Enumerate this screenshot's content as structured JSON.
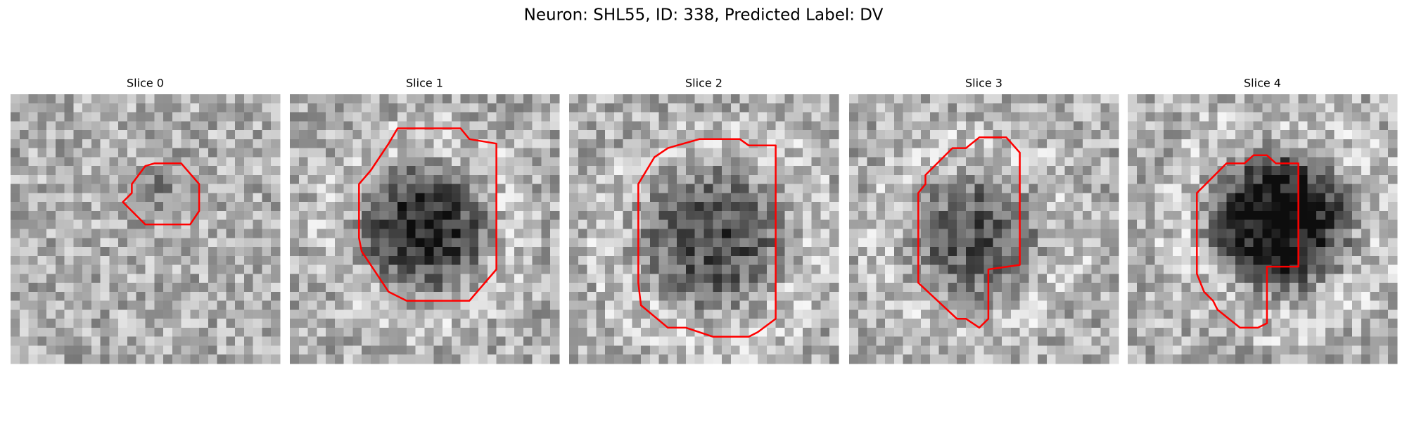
{
  "title": "Neuron: SHL55, ID: 338, Predicted Label: DV",
  "panels": [
    {
      "title": "Slice 0"
    },
    {
      "title": "Slice 1"
    },
    {
      "title": "Slice 2"
    },
    {
      "title": "Slice 3"
    },
    {
      "title": "Slice 4"
    }
  ]
}
